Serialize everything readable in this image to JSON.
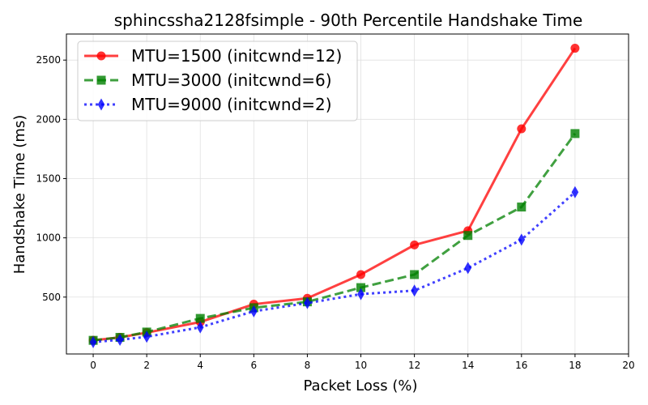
{
  "chart_data": {
    "type": "line",
    "title": "sphincssha2128fsimple - 90th Percentile Handshake Time",
    "xlabel": "Packet Loss (%)",
    "ylabel": "Handshake Time (ms)",
    "xlim": [
      -1,
      20
    ],
    "ylim": [
      20,
      2720
    ],
    "xticks": [
      0,
      2,
      4,
      6,
      8,
      10,
      12,
      14,
      16,
      18,
      20
    ],
    "yticks": [
      500,
      1000,
      1500,
      2000,
      2500
    ],
    "grid": true,
    "legend_position": "top-left",
    "x": [
      0,
      1,
      2,
      4,
      6,
      8,
      10,
      12,
      14,
      16,
      18
    ],
    "series": [
      {
        "name": "MTU=1500 (initcwnd=12)",
        "color": "#ff0000",
        "dash": "solid",
        "marker": "circle",
        "values": [
          135,
          160,
          200,
          290,
          440,
          490,
          690,
          940,
          1060,
          1920,
          2600
        ]
      },
      {
        "name": "MTU=3000 (initcwnd=6)",
        "color": "#008000",
        "dash": "dashed",
        "marker": "square",
        "values": [
          135,
          160,
          205,
          320,
          410,
          460,
          580,
          690,
          1020,
          1260,
          1880
        ]
      },
      {
        "name": "MTU=9000 (initcwnd=2)",
        "color": "#0000ff",
        "dash": "dotted",
        "marker": "diamond",
        "values": [
          120,
          140,
          165,
          245,
          380,
          450,
          525,
          555,
          745,
          985,
          1385
        ]
      }
    ]
  }
}
